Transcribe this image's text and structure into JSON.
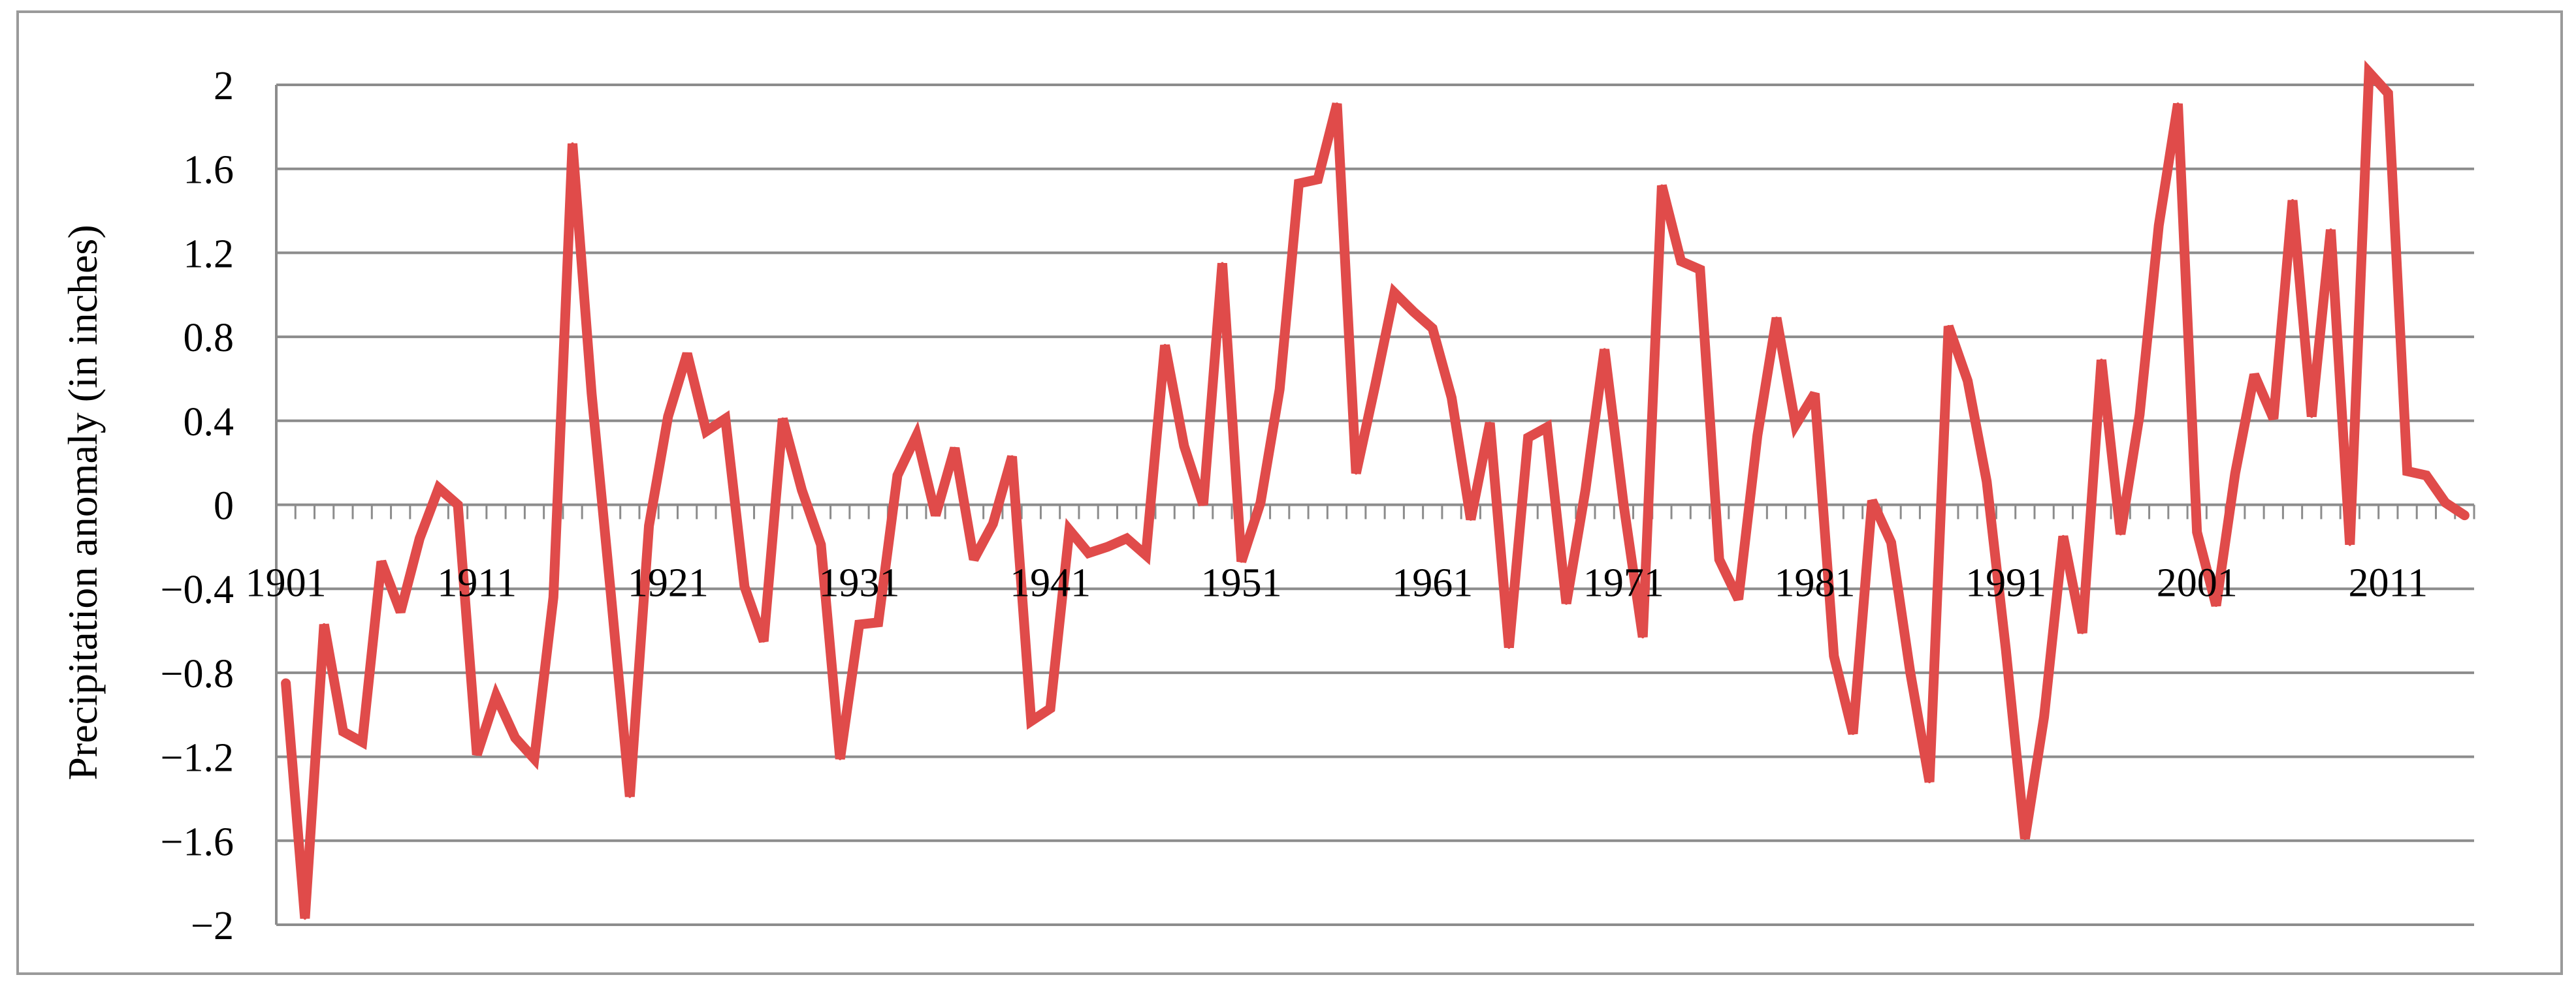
{
  "chart_data": {
    "type": "line",
    "title": "",
    "xlabel": "",
    "ylabel": "Precipitation anomaly (in inches)",
    "ylim": [
      -2,
      2
    ],
    "yticks": [
      2,
      1.6,
      1.2,
      0.8,
      0.4,
      0,
      -0.4,
      -0.8,
      -1.2,
      -1.6,
      -2
    ],
    "ytick_labels": [
      "2",
      "1.6",
      "1.2",
      "0.8",
      "0.4",
      "0",
      "−0.4",
      "−0.8",
      "−1.2",
      "−1.6",
      "−2"
    ],
    "xtick_labels": [
      "1901",
      "1911",
      "1921",
      "1931",
      "1941",
      "1951",
      "1961",
      "1971",
      "1981",
      "1991",
      "2001",
      "2011"
    ],
    "grid": true,
    "legend": false,
    "line_color": "#E04B4A",
    "series": [
      {
        "x": [
          1901,
          1902,
          1903,
          1904,
          1905,
          1906,
          1907,
          1908,
          1909,
          1910,
          1911,
          1912,
          1913,
          1914,
          1915,
          1916,
          1917,
          1918,
          1919,
          1920,
          1921,
          1922,
          1923,
          1924,
          1925,
          1926,
          1927,
          1928,
          1929,
          1930,
          1931,
          1932,
          1933,
          1934,
          1935,
          1936,
          1937,
          1938,
          1939,
          1940,
          1941,
          1942,
          1943,
          1944,
          1945,
          1946,
          1947,
          1948,
          1949,
          1950,
          1951,
          1952,
          1953,
          1954,
          1955,
          1956,
          1957,
          1958,
          1959,
          1960,
          1961,
          1962,
          1963,
          1964,
          1965,
          1966,
          1967,
          1968,
          1969,
          1970,
          1971,
          1972,
          1973,
          1974,
          1975,
          1976,
          1977,
          1978,
          1979,
          1980,
          1981,
          1982,
          1983,
          1984,
          1985,
          1986,
          1987,
          1988,
          1989,
          1990,
          1991,
          1992,
          1993,
          1994,
          1995,
          1996,
          1997,
          1998,
          1999,
          2000,
          2001,
          2002,
          2003,
          2004,
          2005,
          2006,
          2007,
          2008,
          2009,
          2010,
          2011,
          2012,
          2013,
          2014,
          2015
        ],
        "values": [
          -0.85,
          -1.97,
          -0.57,
          -1.08,
          -1.13,
          -0.27,
          -0.51,
          -0.16,
          0.08,
          0.0,
          -1.19,
          -0.91,
          -1.11,
          -1.21,
          -0.44,
          1.72,
          0.53,
          -0.42,
          -1.39,
          -0.1,
          0.42,
          0.72,
          0.35,
          0.41,
          -0.39,
          -0.65,
          0.41,
          0.07,
          -0.19,
          -1.21,
          -0.57,
          -0.56,
          0.14,
          0.33,
          -0.05,
          0.27,
          -0.26,
          -0.09,
          0.23,
          -1.03,
          -0.97,
          -0.12,
          -0.23,
          -0.2,
          -0.16,
          -0.24,
          0.76,
          0.28,
          0.0,
          1.15,
          -0.27,
          0.01,
          0.55,
          1.53,
          1.55,
          1.91,
          0.15,
          0.57,
          1.01,
          0.92,
          0.84,
          0.51,
          -0.07,
          0.39,
          -0.68,
          0.32,
          0.37,
          -0.47,
          0.07,
          0.74,
          0.0,
          -0.63,
          1.52,
          1.16,
          1.12,
          -0.26,
          -0.45,
          0.33,
          0.89,
          0.38,
          0.53,
          -0.72,
          -1.09,
          0.02,
          -0.18,
          -0.8,
          -1.32,
          0.85,
          0.59,
          0.11,
          -0.69,
          -1.59,
          -1.01,
          -0.15,
          -0.61,
          0.69,
          -0.14,
          0.43,
          1.33,
          1.91,
          -0.13,
          -0.48,
          0.15,
          0.62,
          0.41,
          1.45,
          0.42,
          1.31,
          -0.19,
          2.06,
          1.96,
          0.16,
          0.14,
          0.01,
          -0.05
        ]
      }
    ]
  }
}
